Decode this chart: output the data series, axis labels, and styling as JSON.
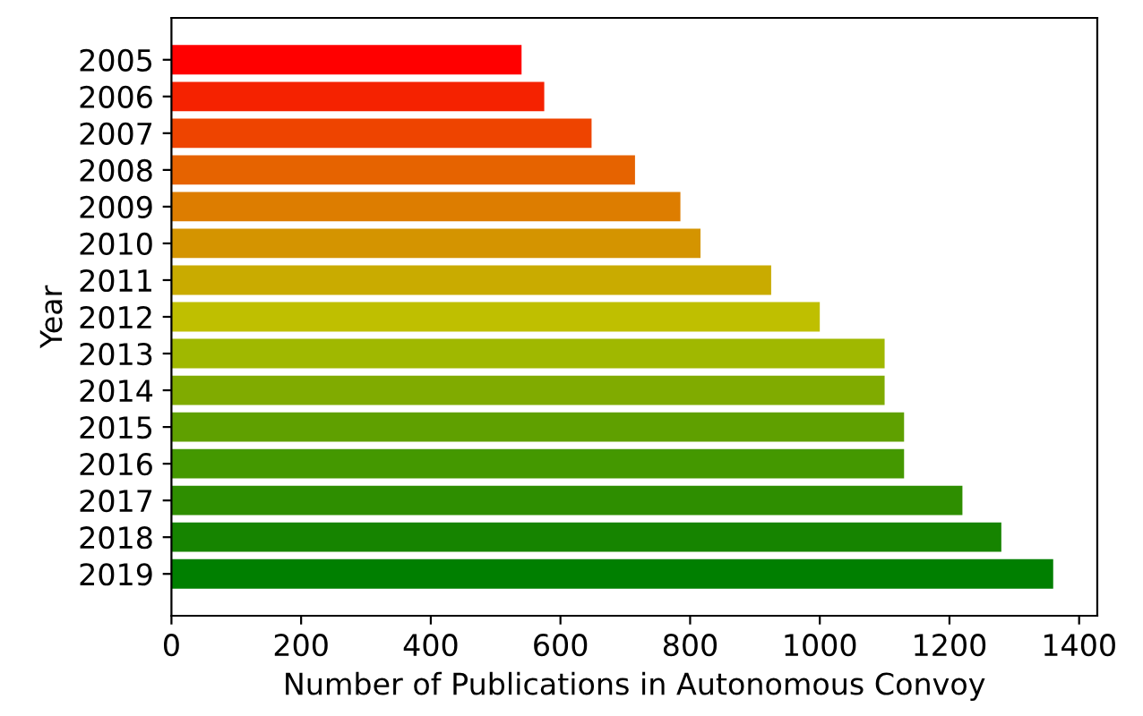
{
  "chart_data": {
    "type": "bar",
    "orientation": "horizontal",
    "xlabel": "Number of Publications in Autonomous Convoy",
    "ylabel": "Year",
    "categories": [
      "2005",
      "2006",
      "2007",
      "2008",
      "2009",
      "2010",
      "2011",
      "2012",
      "2013",
      "2014",
      "2015",
      "2016",
      "2017",
      "2018",
      "2019"
    ],
    "values": [
      540,
      575,
      648,
      715,
      785,
      816,
      925,
      1000,
      1100,
      1100,
      1130,
      1130,
      1220,
      1280,
      1360
    ],
    "colors": [
      "#ff0000",
      "#f52200",
      "#ee4400",
      "#e66300",
      "#dd7d00",
      "#d49400",
      "#c9ab00",
      "#bfbf00",
      "#a0b800",
      "#80ab00",
      "#5fa000",
      "#449800",
      "#2e8e00",
      "#168400",
      "#007f00"
    ],
    "xlim": [
      0,
      1428
    ],
    "xticks": [
      0,
      200,
      400,
      600,
      800,
      1000,
      1200,
      1400
    ],
    "grid": false
  }
}
